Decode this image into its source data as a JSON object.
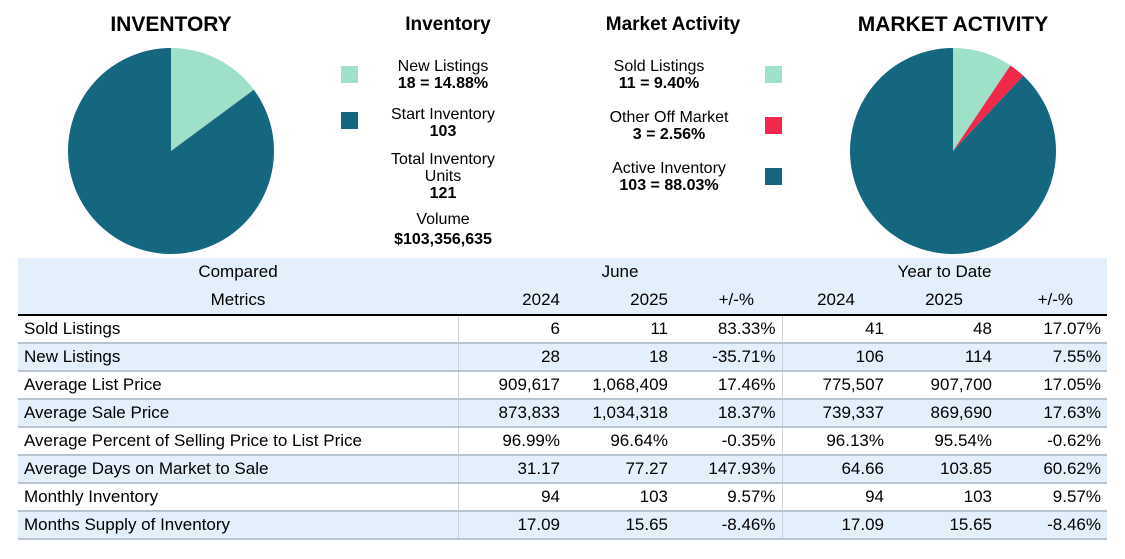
{
  "left_title": "INVENTORY",
  "left_legend_title": "Inventory",
  "left_legend": {
    "new_listings_label": "New Listings",
    "new_listings_value": "18 = 14.88%",
    "start_inventory_label": "Start Inventory",
    "start_inventory_value": "103",
    "total_label_line1": "Total Inventory",
    "total_label_line2": "Units",
    "total_value": "121",
    "volume_label": "Volume",
    "volume_value": "$103,356,635"
  },
  "right_legend_title": "Market Activity",
  "right_legend": {
    "sold_label": "Sold Listings",
    "sold_value": "11 = 9.40%",
    "other_label": "Other Off Market",
    "other_value": "3 = 2.56%",
    "active_label": "Active Inventory",
    "active_value": "103 = 88.03%"
  },
  "right_title": "MARKET ACTIVITY",
  "colors": {
    "teal_dark": "#15667f",
    "mint": "#9fe0c8",
    "red": "#f0284a"
  },
  "chart_data": [
    {
      "type": "pie",
      "title": "INVENTORY",
      "slices": [
        {
          "label": "New Listings",
          "value": 18,
          "percent": 14.88,
          "color": "#9fe0c8"
        },
        {
          "label": "Start Inventory",
          "value": 103,
          "percent": 85.12,
          "color": "#15667f"
        }
      ]
    },
    {
      "type": "pie",
      "title": "MARKET ACTIVITY",
      "slices": [
        {
          "label": "Sold Listings",
          "value": 11,
          "percent": 9.4,
          "color": "#9fe0c8"
        },
        {
          "label": "Other Off Market",
          "value": 3,
          "percent": 2.56,
          "color": "#f0284a"
        },
        {
          "label": "Active Inventory",
          "value": 103,
          "percent": 88.03,
          "color": "#15667f"
        }
      ]
    },
    {
      "type": "table",
      "header_row1": {
        "compared": "Compared",
        "june": "June",
        "ytd": "Year to Date"
      },
      "header_row2": {
        "metrics": "Metrics",
        "cols": [
          "2024",
          "2025",
          "+/-%",
          "2024",
          "2025",
          "+/-%"
        ]
      },
      "rows": [
        {
          "metric": "Sold Listings",
          "values": [
            "6",
            "11",
            "83.33%",
            "41",
            "48",
            "17.07%"
          ]
        },
        {
          "metric": "New Listings",
          "values": [
            "28",
            "18",
            "-35.71%",
            "106",
            "114",
            "7.55%"
          ]
        },
        {
          "metric": "Average List Price",
          "values": [
            "909,617",
            "1,068,409",
            "17.46%",
            "775,507",
            "907,700",
            "17.05%"
          ]
        },
        {
          "metric": "Average Sale Price",
          "values": [
            "873,833",
            "1,034,318",
            "18.37%",
            "739,337",
            "869,690",
            "17.63%"
          ]
        },
        {
          "metric": "Average Percent of Selling Price to List Price",
          "values": [
            "96.99%",
            "96.64%",
            "-0.35%",
            "96.13%",
            "95.54%",
            "-0.62%"
          ]
        },
        {
          "metric": "Average Days on Market to Sale",
          "values": [
            "31.17",
            "77.27",
            "147.93%",
            "64.66",
            "103.85",
            "60.62%"
          ]
        },
        {
          "metric": "Monthly Inventory",
          "values": [
            "94",
            "103",
            "9.57%",
            "94",
            "103",
            "9.57%"
          ]
        },
        {
          "metric": "Months Supply of Inventory",
          "values": [
            "17.09",
            "15.65",
            "-8.46%",
            "17.09",
            "15.65",
            "-8.46%"
          ]
        }
      ]
    }
  ]
}
